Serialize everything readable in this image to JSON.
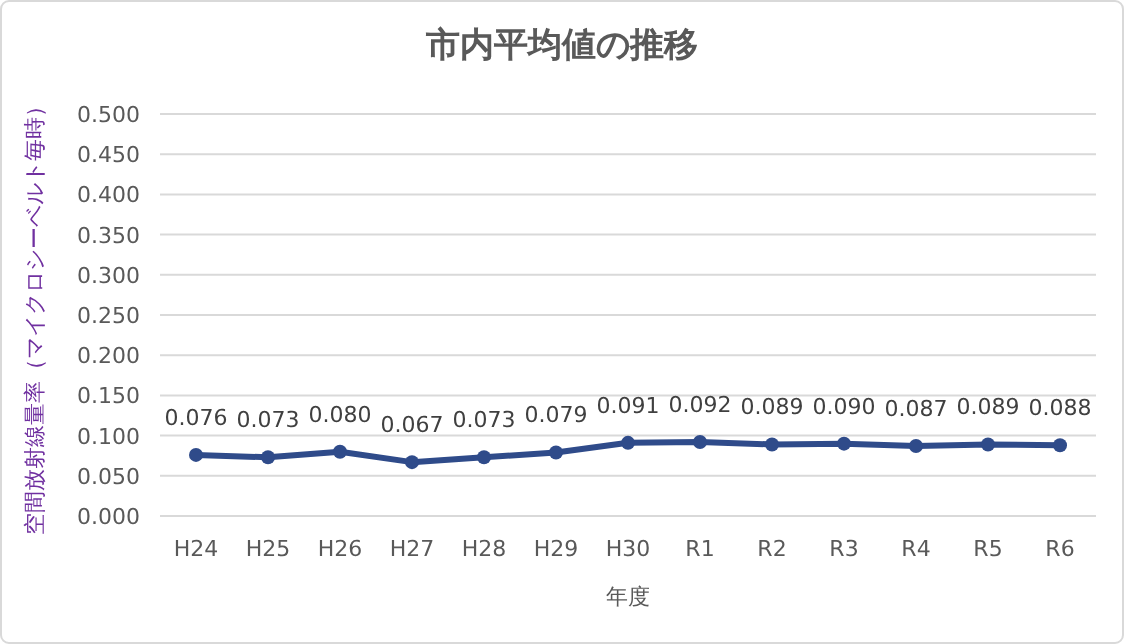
{
  "chart_data": {
    "type": "line",
    "title": "市内平均値の推移",
    "xlabel": "年度",
    "ylabel": "空間放射線量率（マイクロシーベルト毎時）",
    "categories": [
      "H24",
      "H25",
      "H26",
      "H27",
      "H28",
      "H29",
      "H30",
      "R1",
      "R2",
      "R3",
      "R4",
      "R5",
      "R6"
    ],
    "series": [
      {
        "color": "#2f4b8a",
        "values": [
          0.076,
          0.073,
          0.08,
          0.067,
          0.073,
          0.079,
          0.091,
          0.092,
          0.089,
          0.09,
          0.087,
          0.089,
          0.088
        ],
        "value_labels": [
          "0.076",
          "0.073",
          "0.080",
          "0.067",
          "0.073",
          "0.079",
          "0.091",
          "0.092",
          "0.089",
          "0.090",
          "0.087",
          "0.089",
          "0.088"
        ]
      }
    ],
    "ylim": [
      0,
      0.5
    ],
    "yticks": [
      {
        "value": 0,
        "label": "0.000"
      },
      {
        "value": 0.05,
        "label": "0.050"
      },
      {
        "value": 0.1,
        "label": "0.100"
      },
      {
        "value": 0.15,
        "label": "0.150"
      },
      {
        "value": 0.2,
        "label": "0.200"
      },
      {
        "value": 0.25,
        "label": "0.250"
      },
      {
        "value": 0.3,
        "label": "0.300"
      },
      {
        "value": 0.35,
        "label": "0.350"
      },
      {
        "value": 0.4,
        "label": "0.400"
      },
      {
        "value": 0.45,
        "label": "0.450"
      },
      {
        "value": 0.5,
        "label": "0.500"
      }
    ],
    "grid": "y",
    "marker": "circle",
    "line_style": "solid"
  }
}
